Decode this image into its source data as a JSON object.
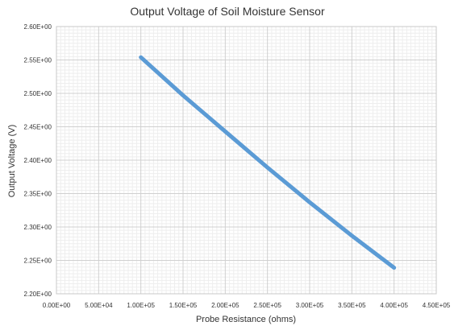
{
  "chart_data": {
    "type": "line",
    "title": "Output Voltage of Soil Moisture Sensor",
    "xlabel": "Probe Resistance (ohms)",
    "ylabel": "Output Voltage (V)",
    "xlim": [
      0,
      450000
    ],
    "ylim": [
      2.2,
      2.6
    ],
    "x_ticks": [
      0,
      50000,
      100000,
      150000,
      200000,
      250000,
      300000,
      350000,
      400000,
      450000
    ],
    "x_tick_labels": [
      "0.00E+00",
      "5.00E+04",
      "1.00E+05",
      "1.50E+05",
      "2.00E+05",
      "2.50E+05",
      "3.00E+05",
      "3.50E+05",
      "4.00E+05",
      "4.50E+05"
    ],
    "y_ticks": [
      2.2,
      2.25,
      2.3,
      2.35,
      2.4,
      2.45,
      2.5,
      2.55,
      2.6
    ],
    "y_tick_labels": [
      "2.20E+00",
      "2.25E+00",
      "2.30E+00",
      "2.35E+00",
      "2.40E+00",
      "2.45E+00",
      "2.50E+00",
      "2.55E+00",
      "2.60E+00"
    ],
    "grid": true,
    "minor_grid": true,
    "legend": "none",
    "series": [
      {
        "color": "#5b9bd5",
        "x": [
          100000,
          150000,
          200000,
          250000,
          300000,
          350000,
          400000
        ],
        "y": [
          2.554,
          2.497,
          2.443,
          2.389,
          2.337,
          2.287,
          2.239
        ]
      }
    ]
  }
}
